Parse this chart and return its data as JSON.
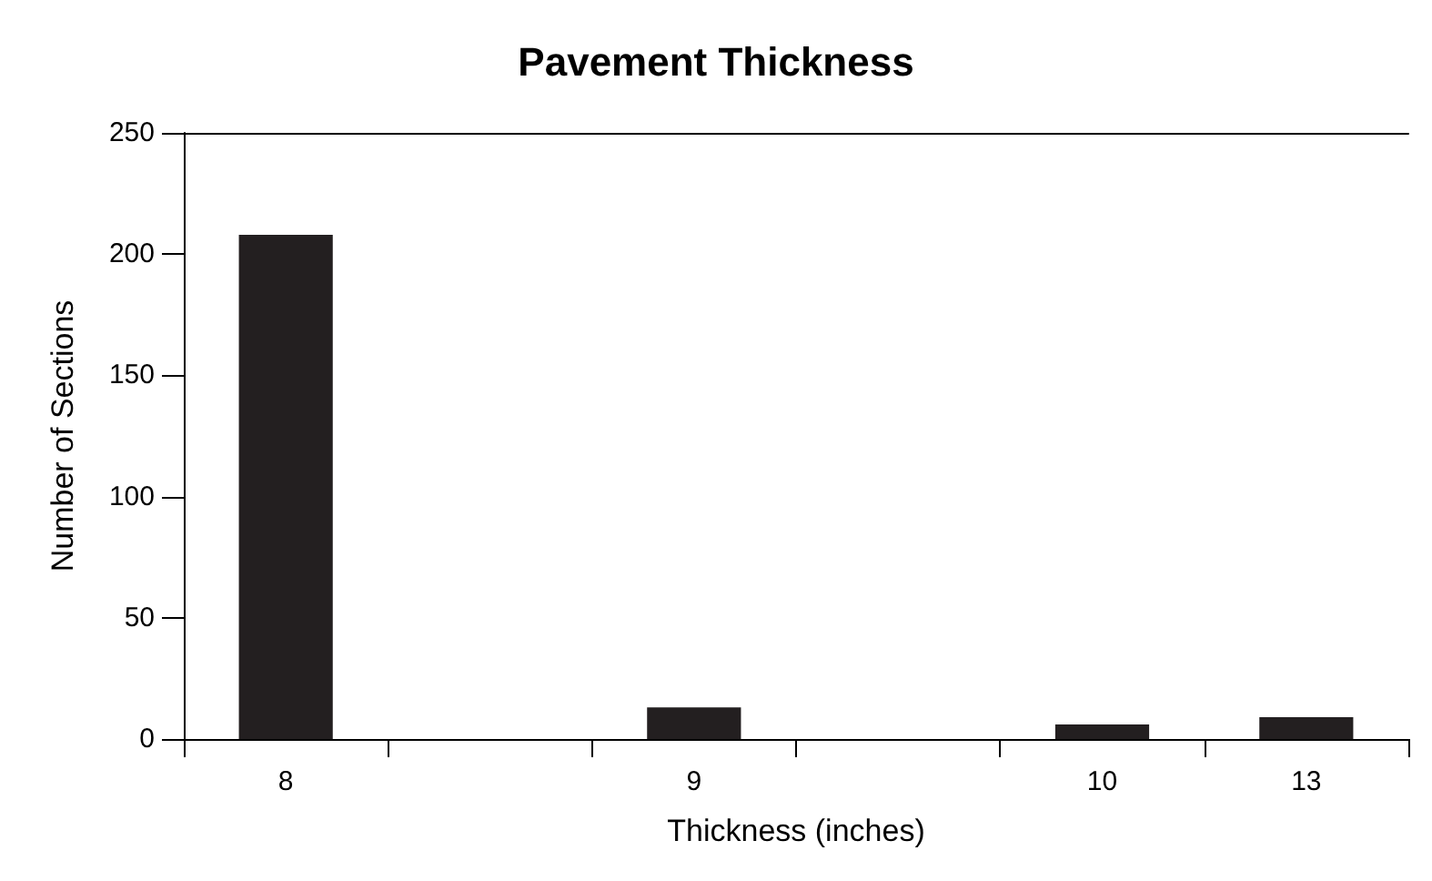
{
  "chart_data": {
    "type": "bar",
    "title": "Pavement Thickness",
    "xlabel": "Thickness (inches)",
    "ylabel": "Number of Sections",
    "categories": [
      "8",
      null,
      "9",
      null,
      "10",
      "13"
    ],
    "values": [
      208,
      null,
      13,
      null,
      6,
      9
    ],
    "color": "#231f20",
    "ylim": [
      0,
      250
    ],
    "yticks": [
      0,
      50,
      100,
      150,
      200,
      250
    ],
    "grid": false
  }
}
